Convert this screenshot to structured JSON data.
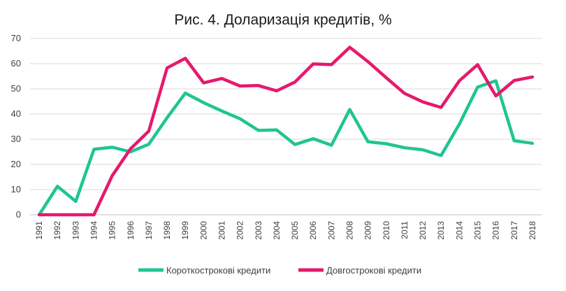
{
  "chart_data": {
    "type": "line",
    "title": "Рис. 4. Доларизація кредитів, %",
    "xlabel": "",
    "ylabel": "",
    "ylim": [
      0,
      70
    ],
    "yticks": [
      "0",
      "10",
      "20",
      "30",
      "40",
      "50",
      "60",
      "70"
    ],
    "grid": true,
    "legend_position": "bottom",
    "categories": [
      "1991",
      "1992",
      "1993",
      "1994",
      "1995",
      "1996",
      "1997",
      "1998",
      "1999",
      "2000",
      "2001",
      "2002",
      "2003",
      "2004",
      "2005",
      "2006",
      "2007",
      "2008",
      "2009",
      "2010",
      "2011",
      "2012",
      "2013",
      "2014",
      "2015",
      "2016",
      "2017",
      "2018"
    ],
    "series": [
      {
        "name": "Короткострокові кредити",
        "color": "#1fc593",
        "values": [
          0,
          11.3,
          5.3,
          26,
          26.8,
          25,
          28,
          38.5,
          48.3,
          44.5,
          41.2,
          38.1,
          33.5,
          33.7,
          27.9,
          30.2,
          27.6,
          41.8,
          29,
          28.2,
          26.6,
          25.8,
          23.5,
          36,
          50.7,
          53.2,
          29.4,
          28.4
        ]
      },
      {
        "name": "Довгострокові кредити",
        "color": "#e5196e",
        "values": [
          0,
          0,
          0,
          0,
          15.5,
          26.2,
          33.2,
          58.3,
          62.1,
          52.4,
          54.1,
          51.1,
          51.3,
          49.2,
          52.7,
          59.9,
          59.6,
          66.5,
          60.8,
          54.4,
          48.2,
          44.8,
          42.6,
          53.2,
          59.6,
          47.2,
          53.3,
          54.7
        ]
      }
    ]
  }
}
